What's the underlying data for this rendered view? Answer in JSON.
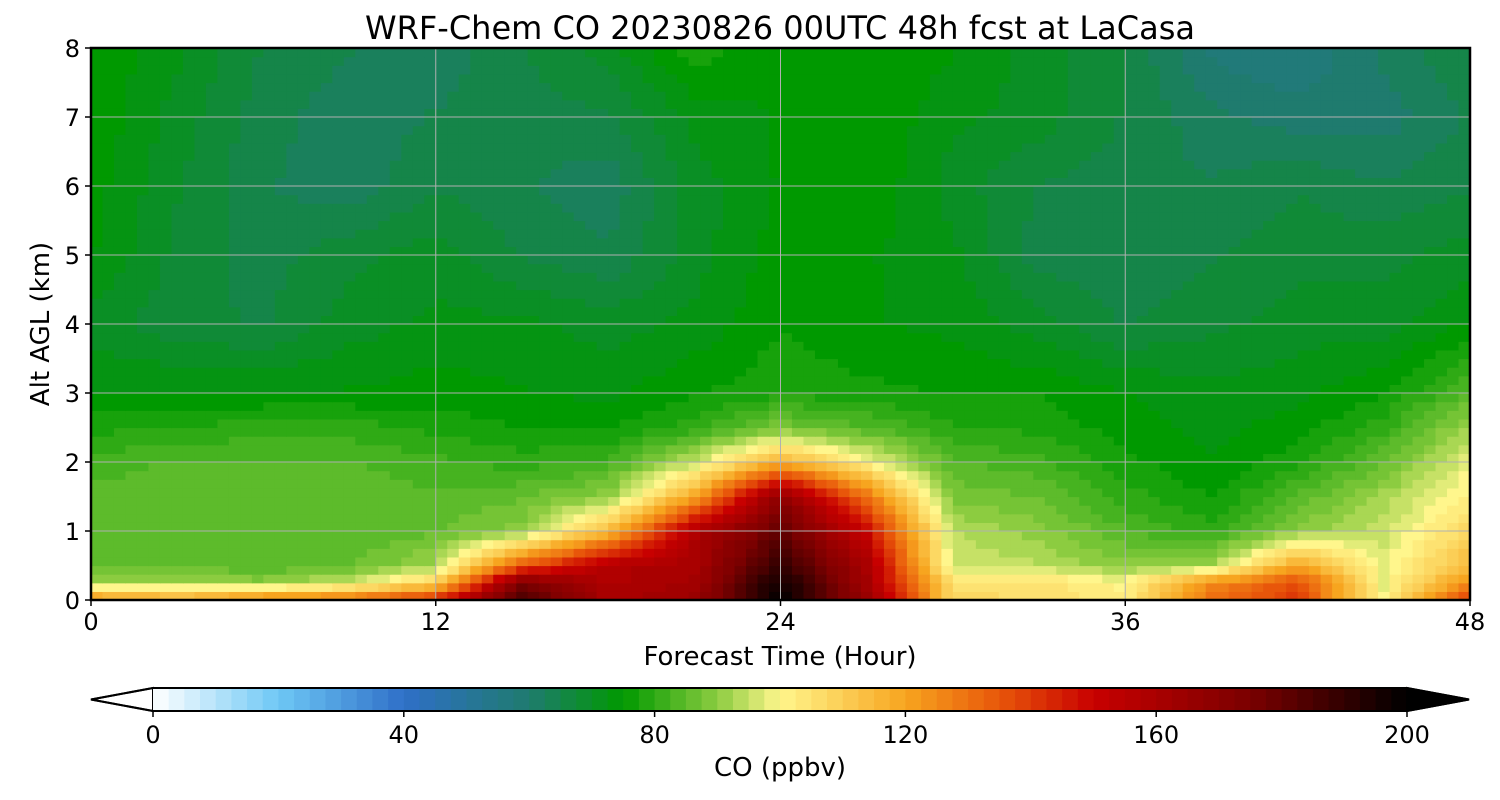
{
  "chart_data": {
    "type": "heatmap",
    "title": "WRF-Chem CO  20230826 00UTC 48h fcst at LaCasa",
    "xlabel": "Forecast Time (Hour)",
    "ylabel": "Alt AGL (km)",
    "xlim": [
      0,
      48
    ],
    "ylim": [
      0,
      8
    ],
    "x_ticks": [
      "0",
      "12",
      "24",
      "36",
      "48"
    ],
    "y_ticks": [
      "0",
      "1",
      "2",
      "3",
      "4",
      "5",
      "6",
      "7",
      "8"
    ],
    "grid": true,
    "colorbar": {
      "label": "CO  (ppbv)",
      "range": [
        0,
        200
      ],
      "ticks": [
        "0",
        "40",
        "80",
        "120",
        "160",
        "200"
      ],
      "extend": "both",
      "placement": "bottom",
      "colormap": [
        [
          0,
          "#ffffff"
        ],
        [
          20,
          "#6ec8f5"
        ],
        [
          40,
          "#2f6fc8"
        ],
        [
          60,
          "#1f7b6e"
        ],
        [
          75,
          "#009900"
        ],
        [
          90,
          "#8ccc40"
        ],
        [
          100,
          "#fff68c"
        ],
        [
          120,
          "#f7a51f"
        ],
        [
          135,
          "#e8560a"
        ],
        [
          150,
          "#c80000"
        ],
        [
          175,
          "#7a0000"
        ],
        [
          200,
          "#000000"
        ]
      ]
    },
    "times": [
      0,
      3,
      6,
      9,
      12,
      15,
      18,
      21,
      24,
      27,
      30,
      33,
      36,
      39,
      42,
      45,
      48
    ],
    "altitudes_km": [
      0,
      0.25,
      0.5,
      1,
      1.5,
      2,
      2.5,
      3,
      4,
      5,
      6,
      7,
      8
    ],
    "values": [
      [
        125,
        120,
        128,
        132,
        145,
        185,
        160,
        165,
        200,
        165,
        108,
        105,
        102,
        130,
        140,
        100,
        140
      ],
      [
        92,
        92,
        90,
        96,
        110,
        175,
        158,
        162,
        198,
        162,
        105,
        106,
        100,
        125,
        138,
        98,
        125
      ],
      [
        86,
        86,
        84,
        86,
        92,
        135,
        158,
        160,
        190,
        160,
        96,
        94,
        90,
        92,
        120,
        98,
        115
      ],
      [
        84,
        85,
        84,
        84,
        86,
        90,
        115,
        158,
        180,
        150,
        94,
        90,
        84,
        80,
        90,
        95,
        108
      ],
      [
        85,
        86,
        86,
        86,
        84,
        86,
        90,
        120,
        170,
        130,
        88,
        86,
        80,
        76,
        84,
        92,
        102
      ],
      [
        82,
        84,
        84,
        84,
        82,
        80,
        82,
        95,
        118,
        100,
        84,
        82,
        77,
        74,
        78,
        86,
        98
      ],
      [
        78,
        79,
        80,
        80,
        78,
        76,
        76,
        80,
        88,
        84,
        79,
        78,
        75,
        73,
        75,
        80,
        92
      ],
      [
        74,
        74,
        74,
        74,
        75,
        74,
        73,
        76,
        78,
        77,
        76,
        76,
        74,
        72,
        73,
        76,
        84
      ],
      [
        70,
        67,
        66,
        70,
        72,
        72,
        70,
        72,
        76,
        74,
        73,
        70,
        66,
        68,
        70,
        70,
        74
      ],
      [
        74,
        68,
        65,
        68,
        70,
        66,
        64,
        70,
        75,
        74,
        72,
        65,
        64,
        66,
        68,
        68,
        70
      ],
      [
        75,
        69,
        64,
        62,
        66,
        64,
        62,
        70,
        74,
        76,
        70,
        66,
        65,
        64,
        66,
        64,
        66
      ],
      [
        76,
        70,
        65,
        62,
        64,
        65,
        66,
        72,
        74,
        76,
        72,
        70,
        66,
        62,
        60,
        60,
        64
      ],
      [
        76,
        72,
        66,
        64,
        62,
        66,
        70,
        78,
        74,
        76,
        74,
        70,
        66,
        58,
        56,
        62,
        66
      ]
    ]
  }
}
